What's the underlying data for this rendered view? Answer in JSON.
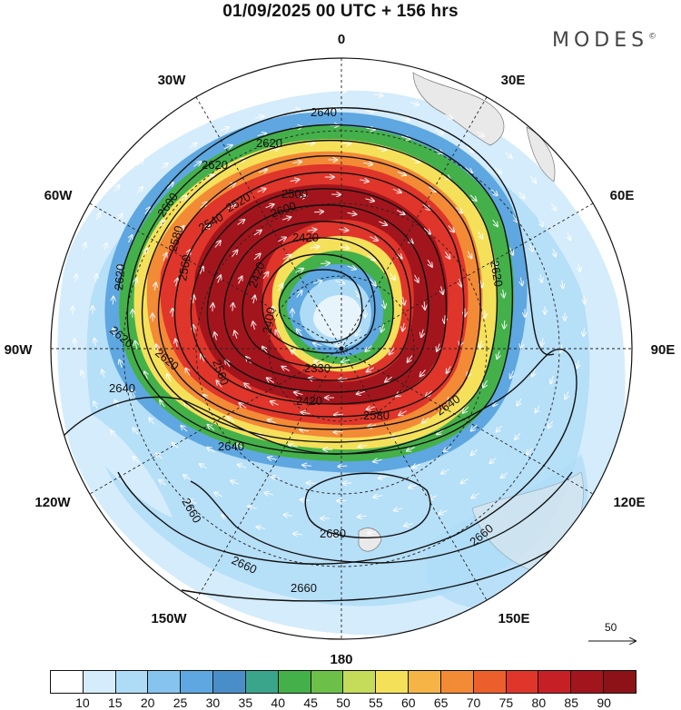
{
  "title": "01/09/2025  00 UTC  + 156 hrs",
  "brand": "MODES",
  "brand_mark": "©",
  "longitude_labels": [
    "0",
    "30E",
    "60E",
    "90E",
    "120E",
    "150E",
    "180",
    "150W",
    "120W",
    "90W",
    "60W",
    "30W"
  ],
  "contour_labels": [
    "2640",
    "2620",
    "2620",
    "2600",
    "2580",
    "2560",
    "2540",
    "2520",
    "2500",
    "2420",
    "2420",
    "2400",
    "2330",
    "2420",
    "2580",
    "2560",
    "2620",
    "2640",
    "2640",
    "2620",
    "2640",
    "2660",
    "2660",
    "2660",
    "2660",
    "2680",
    "2620",
    "2620",
    "2600"
  ],
  "legend": {
    "colors": [
      "#ffffff",
      "#d4ecfb",
      "#aedcf7",
      "#86c4ef",
      "#5ea7e0",
      "#4a8ec9",
      "#3aa58a",
      "#44b04a",
      "#6cc04a",
      "#c4dc5a",
      "#f5e05a",
      "#f7b446",
      "#f38a36",
      "#ec5f2c",
      "#e0352a",
      "#c71f26",
      "#a3151c",
      "#8c1218"
    ],
    "ticks": [
      "10",
      "15",
      "20",
      "25",
      "30",
      "35",
      "40",
      "45",
      "50",
      "55",
      "60",
      "65",
      "70",
      "75",
      "80",
      "85",
      "90"
    ]
  },
  "vector_scale_label": "50"
}
